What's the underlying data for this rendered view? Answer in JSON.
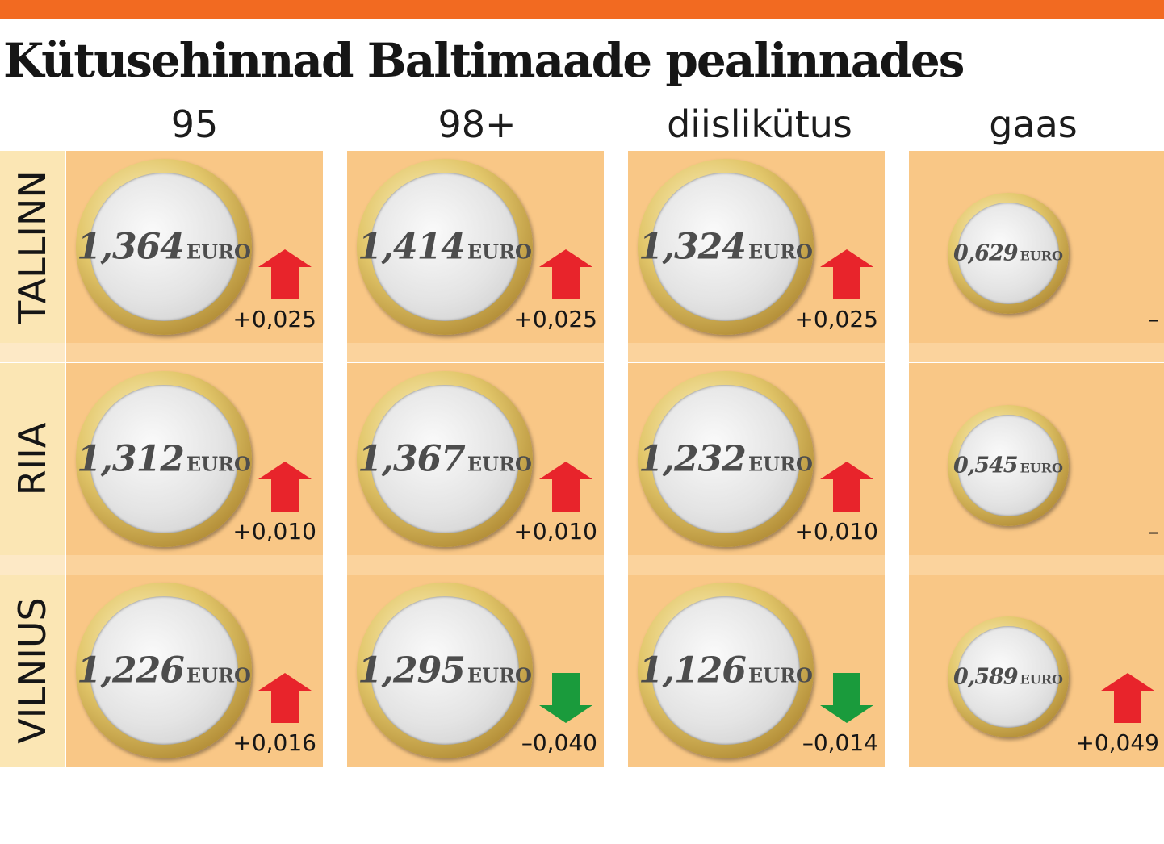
{
  "title": "Kütusehinnad Baltimaade pealinnades",
  "colors": {
    "top_bar": "#f26a21",
    "up": "#e8242b",
    "down": "#1a9b3c"
  },
  "chart_data": {
    "type": "table",
    "columns": [
      "95",
      "98+",
      "diislikütus",
      "gaas"
    ],
    "rows": [
      "TALLINN",
      "RIIA",
      "VILNIUS"
    ],
    "unit": "EURO",
    "prices": [
      [
        "1,364",
        "1,414",
        "1,324",
        "0,629"
      ],
      [
        "1,312",
        "1,367",
        "1,232",
        "0,545"
      ],
      [
        "1,226",
        "1,295",
        "1,126",
        "0,589"
      ]
    ],
    "changes": [
      [
        "+0,025",
        "+0,025",
        "+0,025",
        "–"
      ],
      [
        "+0,010",
        "+0,010",
        "+0,010",
        "–"
      ],
      [
        "+0,016",
        "–0,040",
        "–0,014",
        "+0,049"
      ]
    ],
    "directions": [
      [
        "up",
        "up",
        "up",
        "none"
      ],
      [
        "up",
        "up",
        "up",
        "none"
      ],
      [
        "up",
        "down",
        "down",
        "up"
      ]
    ]
  }
}
